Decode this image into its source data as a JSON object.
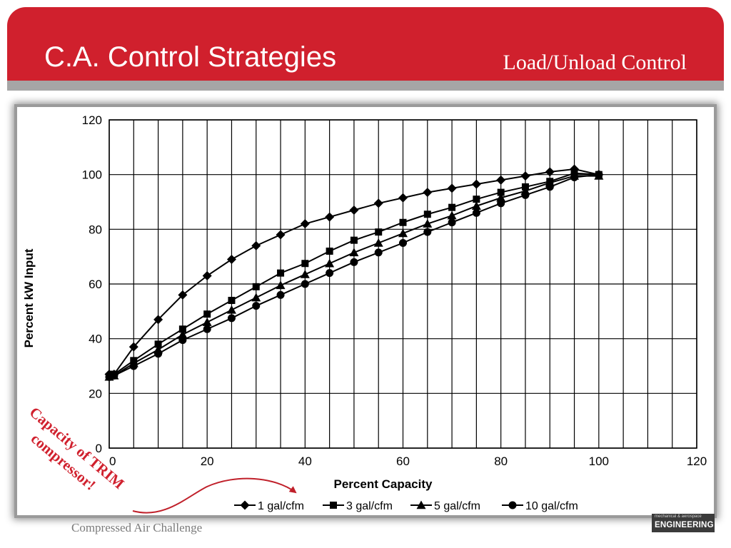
{
  "slide": {
    "title": "C.A. Control Strategies",
    "subtitle": "Load/Unload Control",
    "footer": "Compressed Air Challenge",
    "logo_small": "mechanical & aerospace",
    "logo_main": "ENGINEERING",
    "annotation_line1": "Capacity of TRIM",
    "annotation_line2": "compressor!",
    "accent_color": "#d0202d",
    "stripe_color": "#a6a6a6"
  },
  "chart_data": {
    "type": "line",
    "title": "",
    "xlabel": "Percent Capacity",
    "ylabel": "Percent kW Input",
    "xlim": [
      0,
      120
    ],
    "ylim": [
      0,
      120
    ],
    "x_ticks": [
      0,
      20,
      40,
      60,
      80,
      100,
      120
    ],
    "y_ticks": [
      0,
      20,
      40,
      60,
      80,
      100,
      120
    ],
    "grid": true,
    "legend_position": "bottom",
    "series": [
      {
        "name": "1 gal/cfm",
        "marker": "diamond",
        "x": [
          0,
          1,
          5,
          10,
          15,
          20,
          25,
          30,
          35,
          40,
          45,
          50,
          55,
          60,
          65,
          70,
          75,
          80,
          85,
          90,
          95,
          100
        ],
        "y": [
          27,
          27,
          37,
          47,
          56,
          63,
          69,
          74,
          78,
          82,
          84.5,
          87,
          89.5,
          91.5,
          93.5,
          95,
          96.5,
          98,
          99.5,
          101,
          102,
          100
        ]
      },
      {
        "name": "3 gal/cfm",
        "marker": "square",
        "x": [
          0,
          1,
          5,
          10,
          15,
          20,
          25,
          30,
          35,
          40,
          45,
          50,
          55,
          60,
          65,
          70,
          75,
          80,
          85,
          90,
          95,
          100
        ],
        "y": [
          26,
          27,
          32,
          38,
          43.5,
          49,
          54,
          59,
          64,
          67.5,
          72,
          76,
          79,
          82.5,
          85.5,
          88,
          91,
          93.5,
          95.5,
          97.5,
          100.5,
          100
        ]
      },
      {
        "name": "5 gal/cfm",
        "marker": "triangle",
        "x": [
          0,
          1,
          5,
          10,
          15,
          20,
          25,
          30,
          35,
          40,
          45,
          50,
          55,
          60,
          65,
          70,
          75,
          80,
          85,
          90,
          95,
          100
        ],
        "y": [
          26,
          26.5,
          31,
          36,
          41.5,
          46,
          50.5,
          55,
          59.5,
          63.5,
          67.5,
          71.5,
          75,
          78.5,
          82,
          85,
          88.5,
          91.5,
          94,
          97,
          99.5,
          99.5
        ]
      },
      {
        "name": "10 gal/cfm",
        "marker": "circle",
        "x": [
          0,
          1,
          5,
          10,
          15,
          20,
          25,
          30,
          35,
          40,
          45,
          50,
          55,
          60,
          65,
          70,
          75,
          80,
          85,
          90,
          95,
          100
        ],
        "y": [
          26,
          26.5,
          30,
          34.5,
          39.5,
          43.5,
          47.5,
          52,
          56,
          60,
          64,
          68,
          71.5,
          75,
          79,
          82.5,
          86,
          89.5,
          92.5,
          95.5,
          99,
          100
        ]
      }
    ]
  }
}
